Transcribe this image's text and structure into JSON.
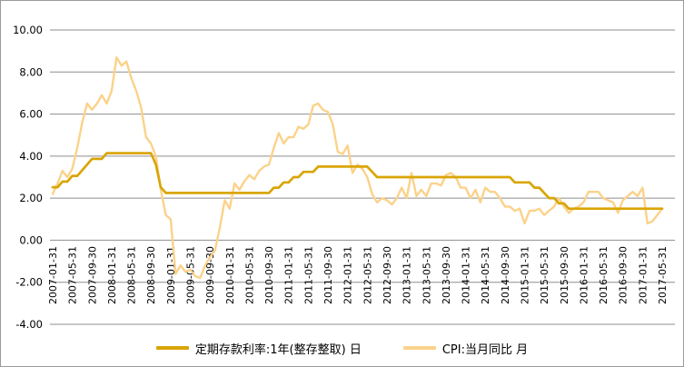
{
  "chart": {
    "background": "#ffffff",
    "frame_border_color": "#9a9a9a",
    "gridline_color": "#8e8e8e",
    "axis_label_color": "#000000"
  },
  "chart_data": {
    "type": "line",
    "title": "",
    "xlabel": "",
    "ylabel": "",
    "grid": true,
    "legend_position": "bottom",
    "ylim": [
      -4,
      10
    ],
    "y_tick_values": [
      10,
      8,
      6,
      4,
      2,
      0,
      -2,
      -4
    ],
    "y_tick_labels": [
      "10.00",
      "8.00",
      "6.00",
      "4.00",
      "2.00",
      "0.00",
      "-2.00",
      "-4.00"
    ],
    "x_start": "2007-01",
    "x_points": 125,
    "x_tick_every": 4,
    "x_tick_labels": [
      "2007-01-31",
      "2007-05-31",
      "2007-09-30",
      "2008-01-31",
      "2008-05-31",
      "2008-09-30",
      "2009-01-31",
      "2009-05-31",
      "2009-09-30",
      "2010-01-31",
      "2010-05-31",
      "2010-09-30",
      "2011-01-31",
      "2011-05-31",
      "2011-09-30",
      "2012-01-31",
      "2012-05-31",
      "2012-09-30",
      "2013-01-31",
      "2013-05-31",
      "2013-09-30",
      "2014-01-31",
      "2014-05-31",
      "2014-09-30",
      "2015-01-31",
      "2015-05-31",
      "2015-09-30",
      "2016-01-31",
      "2016-05-31",
      "2016-09-30",
      "2017-01-31",
      "2017-05-31"
    ],
    "series": [
      {
        "name": "CPI:当月同比 月",
        "color": "#FBD28A",
        "line_width": 2.4,
        "values": [
          2.2,
          2.7,
          3.3,
          3.0,
          3.4,
          4.4,
          5.6,
          6.5,
          6.2,
          6.5,
          6.9,
          6.5,
          7.1,
          8.7,
          8.3,
          8.5,
          7.7,
          7.1,
          6.3,
          4.9,
          4.6,
          4.0,
          2.4,
          1.2,
          1.0,
          -1.6,
          -1.2,
          -1.5,
          -1.4,
          -1.7,
          -1.8,
          -1.2,
          -0.8,
          -0.5,
          0.6,
          1.9,
          1.5,
          2.7,
          2.4,
          2.8,
          3.1,
          2.9,
          3.3,
          3.5,
          3.6,
          4.4,
          5.1,
          4.6,
          4.9,
          4.9,
          5.4,
          5.3,
          5.5,
          6.4,
          6.5,
          6.2,
          6.1,
          5.5,
          4.2,
          4.1,
          4.5,
          3.2,
          3.6,
          3.4,
          3.0,
          2.2,
          1.8,
          2.0,
          1.9,
          1.7,
          2.0,
          2.5,
          2.0,
          3.2,
          2.1,
          2.4,
          2.1,
          2.7,
          2.7,
          2.6,
          3.1,
          3.2,
          3.0,
          2.5,
          2.5,
          2.0,
          2.4,
          1.8,
          2.5,
          2.3,
          2.3,
          2.0,
          1.6,
          1.6,
          1.4,
          1.5,
          0.8,
          1.4,
          1.4,
          1.5,
          1.2,
          1.4,
          1.6,
          2.0,
          1.6,
          1.3,
          1.5,
          1.6,
          1.8,
          2.3,
          2.3,
          2.3,
          2.0,
          1.9,
          1.8,
          1.3,
          1.9,
          2.1,
          2.3,
          2.1,
          2.5,
          0.8,
          0.9,
          1.2,
          1.5
        ]
      },
      {
        "name": "定期存款利率:1年(整存整取) 日",
        "color": "#D9A506",
        "line_width": 2.7,
        "values": [
          2.52,
          2.52,
          2.79,
          2.79,
          3.06,
          3.06,
          3.33,
          3.6,
          3.87,
          3.87,
          3.87,
          4.14,
          4.14,
          4.14,
          4.14,
          4.14,
          4.14,
          4.14,
          4.14,
          4.14,
          4.14,
          3.6,
          2.52,
          2.25,
          2.25,
          2.25,
          2.25,
          2.25,
          2.25,
          2.25,
          2.25,
          2.25,
          2.25,
          2.25,
          2.25,
          2.25,
          2.25,
          2.25,
          2.25,
          2.25,
          2.25,
          2.25,
          2.25,
          2.25,
          2.25,
          2.5,
          2.5,
          2.75,
          2.75,
          3.0,
          3.0,
          3.25,
          3.25,
          3.25,
          3.5,
          3.5,
          3.5,
          3.5,
          3.5,
          3.5,
          3.5,
          3.5,
          3.5,
          3.5,
          3.5,
          3.25,
          3.0,
          3.0,
          3.0,
          3.0,
          3.0,
          3.0,
          3.0,
          3.0,
          3.0,
          3.0,
          3.0,
          3.0,
          3.0,
          3.0,
          3.0,
          3.0,
          3.0,
          3.0,
          3.0,
          3.0,
          3.0,
          3.0,
          3.0,
          3.0,
          3.0,
          3.0,
          3.0,
          3.0,
          2.75,
          2.75,
          2.75,
          2.75,
          2.5,
          2.5,
          2.25,
          2.0,
          2.0,
          1.75,
          1.75,
          1.5,
          1.5,
          1.5,
          1.5,
          1.5,
          1.5,
          1.5,
          1.5,
          1.5,
          1.5,
          1.5,
          1.5,
          1.5,
          1.5,
          1.5,
          1.5,
          1.5,
          1.5,
          1.5,
          1.5
        ]
      }
    ],
    "legend": {
      "deposit_label": "定期存款利率:1年(整存整取) 日",
      "cpi_label": "CPI:当月同比 月"
    }
  }
}
